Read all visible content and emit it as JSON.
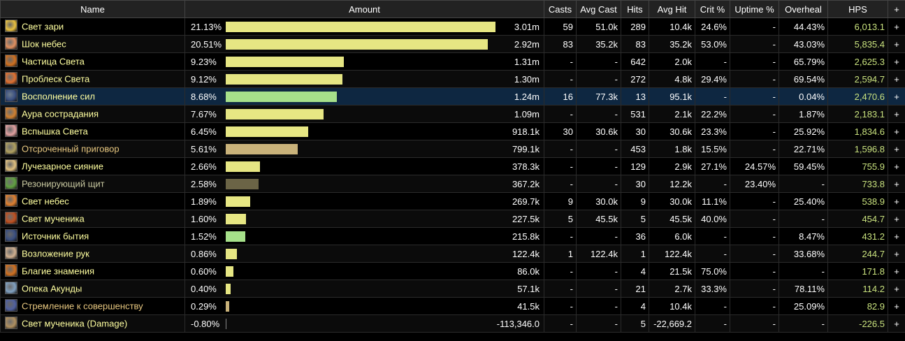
{
  "columns": {
    "name": "Name",
    "amount": "Amount",
    "casts": "Casts",
    "avg_cast": "Avg Cast",
    "hits": "Hits",
    "avg_hit": "Avg Hit",
    "crit": "Crit %",
    "uptime": "Uptime %",
    "overheal": "Overheal",
    "hps": "HPS",
    "plus": "+"
  },
  "max_share": 21.13,
  "rows": [
    {
      "name": "Свет зари",
      "name_color": "#ffffa0",
      "icon": "dawn-light-icon",
      "icon_color": "#e8c040",
      "share": 21.13,
      "percent": "21.13%",
      "amount": "3.01m",
      "bar_color": "#e6e683",
      "casts": "59",
      "avg_cast": "51.0k",
      "hits": "289",
      "avg_hit": "10.4k",
      "crit": "24.6%",
      "uptime": "-",
      "overheal": "44.43%",
      "hps": "6,013.1",
      "plus": "+"
    },
    {
      "name": "Шок небес",
      "name_color": "#ffffa0",
      "icon": "holy-shock-icon",
      "icon_color": "#e09060",
      "share": 20.51,
      "percent": "20.51%",
      "amount": "2.92m",
      "bar_color": "#e6e683",
      "casts": "83",
      "avg_cast": "35.2k",
      "hits": "83",
      "avg_hit": "35.2k",
      "crit": "53.0%",
      "uptime": "-",
      "overheal": "43.03%",
      "hps": "5,835.4",
      "plus": "+"
    },
    {
      "name": "Частица Света",
      "name_color": "#ffffa0",
      "icon": "beacon-icon",
      "icon_color": "#d07020",
      "share": 9.23,
      "percent": "9.23%",
      "amount": "1.31m",
      "bar_color": "#e6e683",
      "casts": "-",
      "avg_cast": "-",
      "hits": "642",
      "avg_hit": "2.0k",
      "crit": "-",
      "uptime": "-",
      "overheal": "65.79%",
      "hps": "2,625.3",
      "plus": "+"
    },
    {
      "name": "Проблеск Света",
      "name_color": "#ffffa0",
      "icon": "glimmer-icon",
      "icon_color": "#e07030",
      "share": 9.12,
      "percent": "9.12%",
      "amount": "1.30m",
      "bar_color": "#e6e683",
      "casts": "-",
      "avg_cast": "-",
      "hits": "272",
      "avg_hit": "4.8k",
      "crit": "29.4%",
      "uptime": "-",
      "overheal": "69.54%",
      "hps": "2,594.7",
      "plus": "+"
    },
    {
      "name": "Восполнение сил",
      "name_color": "#ffffa0",
      "icon": "replenish-icon",
      "icon_color": "#3a4f80",
      "share": 8.68,
      "percent": "8.68%",
      "amount": "1.24m",
      "bar_color": "#a6e08a",
      "casts": "16",
      "avg_cast": "77.3k",
      "hits": "13",
      "avg_hit": "95.1k",
      "crit": "-",
      "uptime": "-",
      "overheal": "0.04%",
      "hps": "2,470.6",
      "plus": "+",
      "selected": true
    },
    {
      "name": "Аура сострадания",
      "name_color": "#ffffa0",
      "icon": "aura-icon",
      "icon_color": "#d08030",
      "share": 7.67,
      "percent": "7.67%",
      "amount": "1.09m",
      "bar_color": "#e6e683",
      "casts": "-",
      "avg_cast": "-",
      "hits": "531",
      "avg_hit": "2.1k",
      "crit": "22.2%",
      "uptime": "-",
      "overheal": "1.87%",
      "hps": "2,183.1",
      "plus": "+"
    },
    {
      "name": "Вспышка Света",
      "name_color": "#ffffa0",
      "icon": "flash-of-light-icon",
      "icon_color": "#e0a0a0",
      "share": 6.45,
      "percent": "6.45%",
      "amount": "918.1k",
      "bar_color": "#e6e683",
      "casts": "30",
      "avg_cast": "30.6k",
      "hits": "30",
      "avg_hit": "30.6k",
      "crit": "23.3%",
      "uptime": "-",
      "overheal": "25.92%",
      "hps": "1,834.6",
      "plus": "+"
    },
    {
      "name": "Отсроченный приговор",
      "name_color": "#e8c880",
      "icon": "deferred-judgment-icon",
      "icon_color": "#b0a060",
      "share": 5.61,
      "percent": "5.61%",
      "amount": "799.1k",
      "bar_color": "#c9b27a",
      "casts": "-",
      "avg_cast": "-",
      "hits": "453",
      "avg_hit": "1.8k",
      "crit": "15.5%",
      "uptime": "-",
      "overheal": "22.71%",
      "hps": "1,596.8",
      "plus": "+"
    },
    {
      "name": "Лучезарное сияние",
      "name_color": "#ffffa0",
      "icon": "radiance-icon",
      "icon_color": "#e0c080",
      "share": 2.66,
      "percent": "2.66%",
      "amount": "378.3k",
      "bar_color": "#e6e683",
      "casts": "-",
      "avg_cast": "-",
      "hits": "129",
      "avg_hit": "2.9k",
      "crit": "27.1%",
      "uptime": "24.57%",
      "overheal": "59.45%",
      "hps": "755.9",
      "plus": "+"
    },
    {
      "name": "Резонирующий щит",
      "name_color": "#c8c8a0",
      "icon": "shield-icon",
      "icon_color": "#60a040",
      "share": 2.58,
      "percent": "2.58%",
      "amount": "367.2k",
      "bar_color": "#6b6446",
      "casts": "-",
      "avg_cast": "-",
      "hits": "30",
      "avg_hit": "12.2k",
      "crit": "-",
      "uptime": "23.40%",
      "overheal": "-",
      "hps": "733.8",
      "plus": "+"
    },
    {
      "name": "Свет небес",
      "name_color": "#ffffa0",
      "icon": "holy-light-icon",
      "icon_color": "#e08030",
      "share": 1.89,
      "percent": "1.89%",
      "amount": "269.7k",
      "bar_color": "#e6e683",
      "casts": "9",
      "avg_cast": "30.0k",
      "hits": "9",
      "avg_hit": "30.0k",
      "crit": "11.1%",
      "uptime": "-",
      "overheal": "25.40%",
      "hps": "538.9",
      "plus": "+"
    },
    {
      "name": "Свет мученика",
      "name_color": "#ffffa0",
      "icon": "martyr-light-icon",
      "icon_color": "#c05020",
      "share": 1.6,
      "percent": "1.60%",
      "amount": "227.5k",
      "bar_color": "#e6e683",
      "casts": "5",
      "avg_cast": "45.5k",
      "hits": "5",
      "avg_hit": "45.5k",
      "crit": "40.0%",
      "uptime": "-",
      "overheal": "-",
      "hps": "454.7",
      "plus": "+"
    },
    {
      "name": "Источник бытия",
      "name_color": "#ffffa0",
      "icon": "source-icon",
      "icon_color": "#3a4f80",
      "share": 1.52,
      "percent": "1.52%",
      "amount": "215.8k",
      "bar_color": "#a6e08a",
      "casts": "-",
      "avg_cast": "-",
      "hits": "36",
      "avg_hit": "6.0k",
      "crit": "-",
      "uptime": "-",
      "overheal": "8.47%",
      "hps": "431.2",
      "plus": "+"
    },
    {
      "name": "Возложение рук",
      "name_color": "#ffffa0",
      "icon": "lay-on-hands-icon",
      "icon_color": "#d0b090",
      "share": 0.86,
      "percent": "0.86%",
      "amount": "122.4k",
      "bar_color": "#e6e683",
      "casts": "1",
      "avg_cast": "122.4k",
      "hits": "1",
      "avg_hit": "122.4k",
      "crit": "-",
      "uptime": "-",
      "overheal": "33.68%",
      "hps": "244.7",
      "plus": "+"
    },
    {
      "name": "Благие знамения",
      "name_color": "#ffffa0",
      "icon": "omen-icon",
      "icon_color": "#d07020",
      "share": 0.6,
      "percent": "0.60%",
      "amount": "86.0k",
      "bar_color": "#e6e683",
      "casts": "-",
      "avg_cast": "-",
      "hits": "4",
      "avg_hit": "21.5k",
      "crit": "75.0%",
      "uptime": "-",
      "overheal": "-",
      "hps": "171.8",
      "plus": "+"
    },
    {
      "name": "Опека Акунды",
      "name_color": "#ffffa0",
      "icon": "akunda-icon",
      "icon_color": "#80a0c0",
      "share": 0.4,
      "percent": "0.40%",
      "amount": "57.1k",
      "bar_color": "#e6e683",
      "casts": "-",
      "avg_cast": "-",
      "hits": "21",
      "avg_hit": "2.7k",
      "crit": "33.3%",
      "uptime": "-",
      "overheal": "78.11%",
      "hps": "114.2",
      "plus": "+"
    },
    {
      "name": "Стремление к совершенству",
      "name_color": "#e8c880",
      "icon": "perfection-icon",
      "icon_color": "#5060a0",
      "share": 0.29,
      "percent": "0.29%",
      "amount": "41.5k",
      "bar_color": "#c9b27a",
      "casts": "-",
      "avg_cast": "-",
      "hits": "4",
      "avg_hit": "10.4k",
      "crit": "-",
      "uptime": "-",
      "overheal": "25.09%",
      "hps": "82.9",
      "plus": "+"
    },
    {
      "name": "Свет мученика (Damage)",
      "name_color": "#ffffa0",
      "icon": "martyr-damage-icon",
      "icon_color": "#b09060",
      "share": -0.8,
      "percent": "-0.80%",
      "amount": "-113,346.0",
      "bar_color": "#888888",
      "casts": "-",
      "avg_cast": "-",
      "hits": "5",
      "avg_hit": "-22,669.2",
      "crit": "-",
      "uptime": "-",
      "overheal": "-",
      "hps": "-226.5",
      "plus": "+"
    }
  ]
}
